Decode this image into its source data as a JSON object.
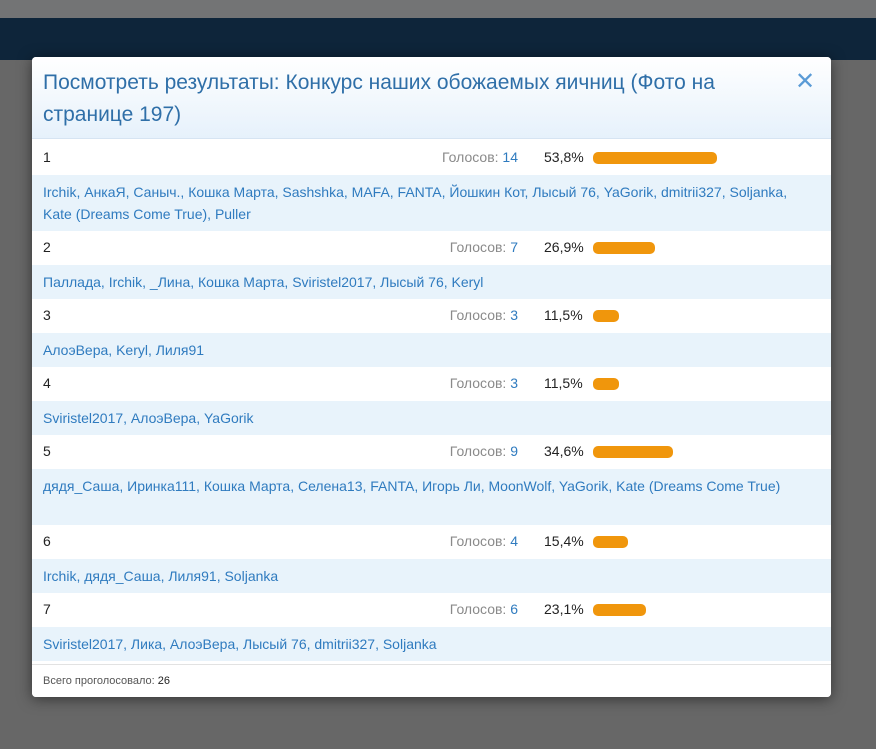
{
  "modal": {
    "title": "Посмотреть результаты: Конкурс наших обожаемых яичниц (Фото на странице 197)",
    "close_symbol": "✕",
    "total_label": "Всего проголосовало:",
    "total_count": "26",
    "votes_label": "Голосов:"
  },
  "options": [
    {
      "label": "1",
      "votes": "14",
      "percent": "53,8%",
      "fraction": 0.538,
      "voters": "Irchik, АнкаЯ, Саныч., Кошка Марта, Sashshka, MAFA, FANTA, Йошкин Кот, Лысый 76, YaGorik, dmitrii327, Soljanka, Kate (Dreams Come True), Puller"
    },
    {
      "label": "2",
      "votes": "7",
      "percent": "26,9%",
      "fraction": 0.269,
      "voters": "Паллада, Irchik, _Лина, Кошка Марта, Sviristel2017, Лысый 76, Keryl"
    },
    {
      "label": "3",
      "votes": "3",
      "percent": "11,5%",
      "fraction": 0.115,
      "voters": "АлоэВера, Keryl, Лиля91"
    },
    {
      "label": "4",
      "votes": "3",
      "percent": "11,5%",
      "fraction": 0.115,
      "voters": "Sviristel2017, АлоэВера, YaGorik"
    },
    {
      "label": "5",
      "votes": "9",
      "percent": "34,6%",
      "fraction": 0.346,
      "voters": "дядя_Саша, Иринка111, Кошка Марта, Селена13, FANTA, Игорь Ли, MoonWolf, YaGorik, Kate (Dreams Come True)"
    },
    {
      "label": "6",
      "votes": "4",
      "percent": "15,4%",
      "fraction": 0.154,
      "voters": "Irchik, дядя_Саша, Лиля91, Soljanka"
    },
    {
      "label": "7",
      "votes": "6",
      "percent": "23,1%",
      "fraction": 0.231,
      "voters": "Sviristel2017, Лика, АлоэВера, Лысый 76, dmitrii327, Soljanka"
    }
  ],
  "colors": {
    "accent": "#2f7bbf",
    "bar": "#f0960c",
    "voters_bg": "#e8f3fb"
  }
}
